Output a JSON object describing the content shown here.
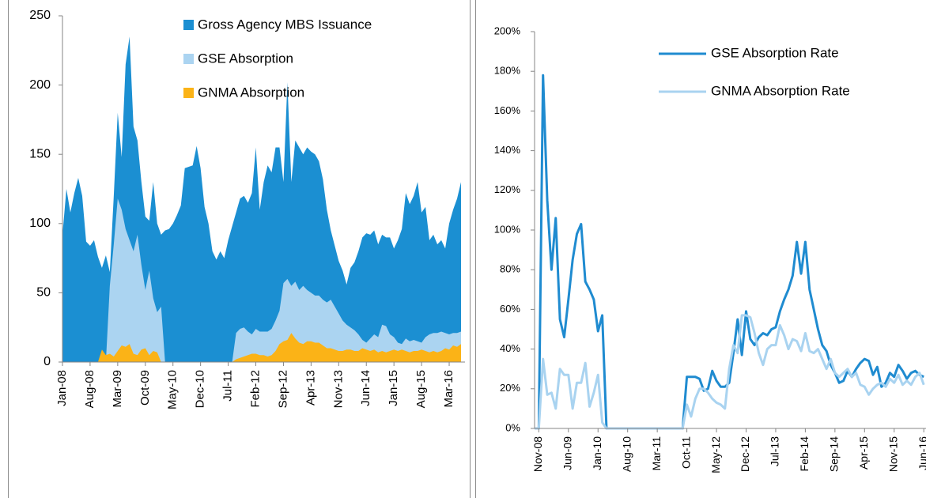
{
  "chart_data": [
    {
      "type": "area",
      "categories": [
        "Jan-08",
        null,
        null,
        null,
        null,
        null,
        null,
        "Aug-08",
        null,
        null,
        null,
        null,
        null,
        null,
        "Mar-09",
        null,
        null,
        null,
        null,
        null,
        null,
        "Oct-09",
        null,
        null,
        null,
        null,
        null,
        null,
        "May-10",
        null,
        null,
        null,
        null,
        null,
        null,
        "Dec-10",
        null,
        null,
        null,
        null,
        null,
        null,
        "Jul-11",
        null,
        null,
        null,
        null,
        null,
        null,
        "Feb-12",
        null,
        null,
        null,
        null,
        null,
        null,
        "Sep-12",
        null,
        null,
        null,
        null,
        null,
        null,
        "Apr-13",
        null,
        null,
        null,
        null,
        null,
        null,
        "Nov-13",
        null,
        null,
        null,
        null,
        null,
        null,
        "Jun-14",
        null,
        null,
        null,
        null,
        null,
        null,
        "Jan-15",
        null,
        null,
        null,
        null,
        null,
        null,
        "Aug-15",
        null,
        null,
        null,
        null,
        null,
        null,
        "Mar-16",
        null,
        null,
        null
      ],
      "ylim": [
        0,
        250
      ],
      "yticks": [
        0,
        50,
        100,
        150,
        200,
        250
      ],
      "series": [
        {
          "name": "Gross Agency MBS Issuance",
          "color": "#1b8fd2",
          "values": [
            92,
            125,
            108,
            122,
            133,
            120,
            87,
            84,
            88,
            76,
            68,
            77,
            65,
            120,
            180,
            148,
            215,
            235,
            170,
            160,
            130,
            105,
            102,
            130,
            100,
            92,
            95,
            96,
            100,
            106,
            113,
            140,
            141,
            142,
            156,
            140,
            112,
            100,
            80,
            74,
            80,
            75,
            88,
            98,
            108,
            118,
            120,
            115,
            122,
            155,
            110,
            130,
            142,
            137,
            155,
            155,
            130,
            202,
            130,
            160,
            155,
            150,
            155,
            152,
            150,
            145,
            132,
            110,
            95,
            84,
            73,
            66,
            56,
            68,
            72,
            80,
            90,
            93,
            92,
            95,
            85,
            92,
            90,
            90,
            82,
            88,
            96,
            122,
            114,
            120,
            130,
            108,
            112,
            88,
            92,
            85,
            88,
            82,
            100,
            110,
            118,
            130
          ]
        },
        {
          "name": "GSE Absorption",
          "color": "#abd4f1",
          "values": [
            0,
            0,
            0,
            0,
            0,
            0,
            0,
            0,
            0,
            0,
            0,
            0,
            55,
            85,
            118,
            110,
            96,
            88,
            80,
            92,
            70,
            52,
            66,
            46,
            36,
            40,
            0,
            0,
            0,
            0,
            0,
            0,
            0,
            0,
            0,
            0,
            0,
            0,
            0,
            0,
            0,
            0,
            0,
            0,
            21,
            24,
            25,
            22,
            20,
            24,
            22,
            22,
            22,
            24,
            30,
            37,
            57,
            60,
            55,
            58,
            52,
            55,
            52,
            50,
            48,
            48,
            45,
            43,
            45,
            40,
            35,
            30,
            27,
            25,
            23,
            20,
            16,
            14,
            17,
            20,
            18,
            27,
            26,
            20,
            18,
            14,
            13,
            17,
            15,
            16,
            15,
            14,
            18,
            20,
            21,
            21,
            22,
            21,
            20,
            21,
            21,
            22
          ]
        },
        {
          "name": "GNMA Absorption",
          "color": "#fbb317",
          "values": [
            0,
            0,
            0,
            0,
            0,
            0,
            0,
            0,
            0,
            0,
            9,
            5,
            6,
            4,
            8,
            12,
            11,
            13,
            6,
            5,
            9,
            10,
            5,
            8,
            7,
            0,
            0,
            0,
            0,
            0,
            0,
            0,
            0,
            0,
            0,
            0,
            0,
            0,
            0,
            0,
            0,
            0,
            0,
            0,
            2,
            3,
            4,
            5,
            6,
            6,
            5,
            5,
            4,
            5,
            8,
            13,
            15,
            16,
            21,
            17,
            14,
            13,
            15,
            15,
            14,
            14,
            12,
            10,
            10,
            9,
            8,
            8,
            9,
            9,
            8,
            8,
            10,
            9,
            8,
            9,
            7,
            8,
            7,
            8,
            9,
            8,
            9,
            8,
            7,
            8,
            8,
            9,
            8,
            7,
            8,
            7,
            8,
            10,
            9,
            12,
            11,
            13
          ]
        }
      ]
    },
    {
      "type": "line",
      "categories": [
        null,
        "Nov-08",
        null,
        null,
        null,
        null,
        null,
        null,
        "Jun-09",
        null,
        null,
        null,
        null,
        null,
        null,
        "Jan-10",
        null,
        null,
        null,
        null,
        null,
        null,
        "Aug-10",
        null,
        null,
        null,
        null,
        null,
        null,
        "Mar-11",
        null,
        null,
        null,
        null,
        null,
        null,
        "Oct-11",
        null,
        null,
        null,
        null,
        null,
        null,
        "May-12",
        null,
        null,
        null,
        null,
        null,
        null,
        "Dec-12",
        null,
        null,
        null,
        null,
        null,
        null,
        "Jul-13",
        null,
        null,
        null,
        null,
        null,
        null,
        "Feb-14",
        null,
        null,
        null,
        null,
        null,
        null,
        "Sep-14",
        null,
        null,
        null,
        null,
        null,
        null,
        "Apr-15",
        null,
        null,
        null,
        null,
        null,
        null,
        "Nov-15",
        null,
        null,
        null,
        null,
        null,
        null,
        "Jun-16"
      ],
      "ylim": [
        0,
        200
      ],
      "yticks": [
        {
          "value": 0,
          "label": "0%"
        },
        {
          "value": 20,
          "label": "20%"
        },
        {
          "value": 40,
          "label": "40%"
        },
        {
          "value": 60,
          "label": "60%"
        },
        {
          "value": 80,
          "label": "80%"
        },
        {
          "value": 100,
          "label": "100%"
        },
        {
          "value": 120,
          "label": "120%"
        },
        {
          "value": 140,
          "label": "140%"
        },
        {
          "value": 160,
          "label": "160%"
        },
        {
          "value": 180,
          "label": "180%"
        },
        {
          "value": 200,
          "label": "200%"
        }
      ],
      "series": [
        {
          "name": "GSE Absorption Rate",
          "color": "#1f8bd0",
          "values": [
            0,
            0,
            178,
            115,
            80,
            106,
            55,
            46,
            65,
            85,
            98,
            103,
            74,
            70,
            65,
            49,
            57,
            0,
            0,
            0,
            0,
            0,
            0,
            0,
            0,
            0,
            0,
            0,
            0,
            0,
            0,
            0,
            0,
            0,
            0,
            0,
            26,
            26,
            26,
            25,
            19,
            20,
            29,
            24,
            21,
            21,
            23,
            38,
            55,
            37,
            59,
            45,
            42,
            46,
            48,
            47,
            50,
            51,
            59,
            65,
            70,
            77,
            94,
            78,
            94,
            70,
            60,
            50,
            42,
            39,
            32,
            28,
            23,
            24,
            29,
            26,
            30,
            33,
            35,
            34,
            27,
            31,
            21,
            23,
            28,
            26,
            32,
            29,
            25,
            28,
            29,
            27,
            26
          ]
        },
        {
          "name": "GNMA Absorption Rate",
          "color": "#a9d3f0",
          "values": [
            0,
            0,
            35,
            17,
            18,
            10,
            30,
            27,
            27,
            10,
            23,
            23,
            33,
            11,
            18,
            27,
            3,
            0,
            0,
            0,
            0,
            0,
            0,
            0,
            0,
            0,
            0,
            0,
            0,
            0,
            0,
            0,
            0,
            0,
            0,
            0,
            12,
            6,
            15,
            20,
            20,
            18,
            15,
            13,
            12,
            10,
            30,
            42,
            38,
            57,
            57,
            56,
            48,
            38,
            32,
            40,
            42,
            42,
            52,
            47,
            40,
            45,
            44,
            39,
            48,
            39,
            38,
            40,
            35,
            30,
            35,
            28,
            26,
            28,
            30,
            26,
            28,
            22,
            21,
            17,
            20,
            22,
            23,
            21,
            25,
            23,
            27,
            22,
            24,
            22,
            26,
            28,
            22
          ]
        }
      ]
    }
  ]
}
